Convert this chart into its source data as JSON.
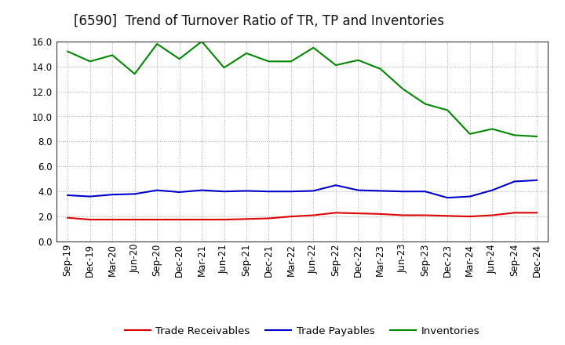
{
  "title": "[6590]  Trend of Turnover Ratio of TR, TP and Inventories",
  "x_labels": [
    "Sep-19",
    "Dec-19",
    "Mar-20",
    "Jun-20",
    "Sep-20",
    "Dec-20",
    "Mar-21",
    "Jun-21",
    "Sep-21",
    "Dec-21",
    "Mar-22",
    "Jun-22",
    "Sep-22",
    "Dec-22",
    "Mar-23",
    "Jun-23",
    "Sep-23",
    "Dec-23",
    "Mar-24",
    "Jun-24",
    "Sep-24",
    "Dec-24"
  ],
  "trade_receivables": [
    1.9,
    1.75,
    1.75,
    1.75,
    1.75,
    1.75,
    1.75,
    1.75,
    1.8,
    1.85,
    2.0,
    2.1,
    2.3,
    2.25,
    2.2,
    2.1,
    2.1,
    2.05,
    2.0,
    2.1,
    2.3,
    2.3
  ],
  "trade_payables": [
    3.7,
    3.6,
    3.75,
    3.8,
    4.1,
    3.95,
    4.1,
    4.0,
    4.05,
    4.0,
    4.0,
    4.05,
    4.5,
    4.1,
    4.05,
    4.0,
    4.0,
    3.5,
    3.6,
    4.1,
    4.8,
    4.9
  ],
  "inventories": [
    15.2,
    14.4,
    14.9,
    13.4,
    15.8,
    14.6,
    16.0,
    13.9,
    15.05,
    14.4,
    14.4,
    15.5,
    14.1,
    14.5,
    13.8,
    12.2,
    11.0,
    10.5,
    8.6,
    9.0,
    8.5,
    8.4
  ],
  "tr_color": "#dd0000",
  "tp_color": "#0000cc",
  "inv_color": "#008800",
  "tr_label": "Trade Receivables",
  "tp_label": "Trade Payables",
  "inv_label": "Inventories",
  "ylim": [
    0.0,
    16.0
  ],
  "yticks": [
    0.0,
    2.0,
    4.0,
    6.0,
    8.0,
    10.0,
    12.0,
    14.0,
    16.0
  ],
  "bg_color": "#ffffff",
  "plot_bg_color": "#ffffff",
  "grid_color": "#888888",
  "title_fontsize": 12,
  "legend_fontsize": 9.5,
  "tick_fontsize": 8.5
}
